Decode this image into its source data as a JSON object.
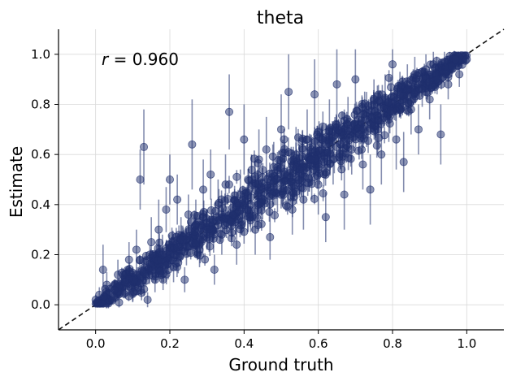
{
  "chart_data": {
    "type": "scatter",
    "title": "theta",
    "xlabel": "Ground truth",
    "ylabel": "Estimate",
    "xlim": [
      -0.1,
      1.1
    ],
    "ylim": [
      -0.1,
      1.1
    ],
    "xticks": [
      "0.0",
      "0.2",
      "0.4",
      "0.6",
      "0.8",
      "1.0"
    ],
    "yticks": [
      "0.0",
      "0.2",
      "0.4",
      "0.6",
      "0.8",
      "1.0"
    ],
    "grid": true,
    "identity_line": true,
    "annotation": {
      "r_symbol": "r",
      "text": " = 0.960"
    },
    "marker_color": "#1f2f6e",
    "point_count_estimate": 1000,
    "points": [
      {
        "x": 0.0,
        "y": 0.02,
        "e": 0.02
      },
      {
        "x": 0.01,
        "y": 0.04,
        "e": 0.03
      },
      {
        "x": 0.02,
        "y": 0.14,
        "e": 0.1
      },
      {
        "x": 0.03,
        "y": 0.08,
        "e": 0.05
      },
      {
        "x": 0.05,
        "y": 0.06,
        "e": 0.04
      },
      {
        "x": 0.06,
        "y": 0.12,
        "e": 0.06
      },
      {
        "x": 0.08,
        "y": 0.09,
        "e": 0.05
      },
      {
        "x": 0.09,
        "y": 0.18,
        "e": 0.07
      },
      {
        "x": 0.1,
        "y": 0.05,
        "e": 0.04
      },
      {
        "x": 0.11,
        "y": 0.22,
        "e": 0.08
      },
      {
        "x": 0.12,
        "y": 0.5,
        "e": 0.12
      },
      {
        "x": 0.13,
        "y": 0.63,
        "e": 0.15
      },
      {
        "x": 0.13,
        "y": 0.13,
        "e": 0.06
      },
      {
        "x": 0.14,
        "y": 0.02,
        "e": 0.03
      },
      {
        "x": 0.15,
        "y": 0.25,
        "e": 0.1
      },
      {
        "x": 0.16,
        "y": 0.1,
        "e": 0.05
      },
      {
        "x": 0.17,
        "y": 0.3,
        "e": 0.12
      },
      {
        "x": 0.18,
        "y": 0.2,
        "e": 0.08
      },
      {
        "x": 0.19,
        "y": 0.38,
        "e": 0.09
      },
      {
        "x": 0.2,
        "y": 0.5,
        "e": 0.1
      },
      {
        "x": 0.21,
        "y": 0.15,
        "e": 0.06
      },
      {
        "x": 0.22,
        "y": 0.42,
        "e": 0.1
      },
      {
        "x": 0.23,
        "y": 0.26,
        "e": 0.09
      },
      {
        "x": 0.24,
        "y": 0.1,
        "e": 0.05
      },
      {
        "x": 0.25,
        "y": 0.36,
        "e": 0.08
      },
      {
        "x": 0.26,
        "y": 0.64,
        "e": 0.18
      },
      {
        "x": 0.27,
        "y": 0.32,
        "e": 0.1
      },
      {
        "x": 0.28,
        "y": 0.22,
        "e": 0.07
      },
      {
        "x": 0.29,
        "y": 0.46,
        "e": 0.12
      },
      {
        "x": 0.3,
        "y": 0.3,
        "e": 0.08
      },
      {
        "x": 0.31,
        "y": 0.52,
        "e": 0.1
      },
      {
        "x": 0.32,
        "y": 0.14,
        "e": 0.06
      },
      {
        "x": 0.33,
        "y": 0.4,
        "e": 0.1
      },
      {
        "x": 0.34,
        "y": 0.28,
        "e": 0.08
      },
      {
        "x": 0.35,
        "y": 0.48,
        "e": 0.12
      },
      {
        "x": 0.36,
        "y": 0.77,
        "e": 0.15
      },
      {
        "x": 0.37,
        "y": 0.36,
        "e": 0.09
      },
      {
        "x": 0.38,
        "y": 0.24,
        "e": 0.08
      },
      {
        "x": 0.39,
        "y": 0.44,
        "e": 0.1
      },
      {
        "x": 0.4,
        "y": 0.66,
        "e": 0.14
      },
      {
        "x": 0.41,
        "y": 0.38,
        "e": 0.09
      },
      {
        "x": 0.42,
        "y": 0.5,
        "e": 0.1
      },
      {
        "x": 0.43,
        "y": 0.3,
        "e": 0.1
      },
      {
        "x": 0.44,
        "y": 0.58,
        "e": 0.12
      },
      {
        "x": 0.45,
        "y": 0.42,
        "e": 0.08
      },
      {
        "x": 0.46,
        "y": 0.62,
        "e": 0.13
      },
      {
        "x": 0.47,
        "y": 0.27,
        "e": 0.09
      },
      {
        "x": 0.48,
        "y": 0.55,
        "e": 0.1
      },
      {
        "x": 0.49,
        "y": 0.46,
        "e": 0.09
      },
      {
        "x": 0.5,
        "y": 0.7,
        "e": 0.14
      },
      {
        "x": 0.51,
        "y": 0.52,
        "e": 0.1
      },
      {
        "x": 0.52,
        "y": 0.85,
        "e": 0.15
      },
      {
        "x": 0.53,
        "y": 0.38,
        "e": 0.1
      },
      {
        "x": 0.54,
        "y": 0.6,
        "e": 0.11
      },
      {
        "x": 0.55,
        "y": 0.54,
        "e": 0.1
      },
      {
        "x": 0.56,
        "y": 0.42,
        "e": 0.12
      },
      {
        "x": 0.57,
        "y": 0.66,
        "e": 0.12
      },
      {
        "x": 0.58,
        "y": 0.58,
        "e": 0.1
      },
      {
        "x": 0.59,
        "y": 0.84,
        "e": 0.14
      },
      {
        "x": 0.6,
        "y": 0.48,
        "e": 0.12
      },
      {
        "x": 0.61,
        "y": 0.62,
        "e": 0.1
      },
      {
        "x": 0.62,
        "y": 0.35,
        "e": 0.1
      },
      {
        "x": 0.63,
        "y": 0.7,
        "e": 0.12
      },
      {
        "x": 0.64,
        "y": 0.58,
        "e": 0.1
      },
      {
        "x": 0.65,
        "y": 0.88,
        "e": 0.15
      },
      {
        "x": 0.66,
        "y": 0.64,
        "e": 0.1
      },
      {
        "x": 0.67,
        "y": 0.44,
        "e": 0.14
      },
      {
        "x": 0.68,
        "y": 0.72,
        "e": 0.11
      },
      {
        "x": 0.69,
        "y": 0.62,
        "e": 0.1
      },
      {
        "x": 0.7,
        "y": 0.9,
        "e": 0.13
      },
      {
        "x": 0.71,
        "y": 0.68,
        "e": 0.1
      },
      {
        "x": 0.72,
        "y": 0.56,
        "e": 0.1
      },
      {
        "x": 0.73,
        "y": 0.74,
        "e": 0.11
      },
      {
        "x": 0.74,
        "y": 0.46,
        "e": 0.14
      },
      {
        "x": 0.75,
        "y": 0.8,
        "e": 0.1
      },
      {
        "x": 0.76,
        "y": 0.7,
        "e": 0.1
      },
      {
        "x": 0.77,
        "y": 0.6,
        "e": 0.12
      },
      {
        "x": 0.78,
        "y": 0.82,
        "e": 0.1
      },
      {
        "x": 0.79,
        "y": 0.74,
        "e": 0.09
      },
      {
        "x": 0.8,
        "y": 0.96,
        "e": 0.08
      },
      {
        "x": 0.81,
        "y": 0.66,
        "e": 0.12
      },
      {
        "x": 0.82,
        "y": 0.84,
        "e": 0.09
      },
      {
        "x": 0.83,
        "y": 0.57,
        "e": 0.12
      },
      {
        "x": 0.84,
        "y": 0.88,
        "e": 0.08
      },
      {
        "x": 0.85,
        "y": 0.78,
        "e": 0.1
      },
      {
        "x": 0.86,
        "y": 0.92,
        "e": 0.07
      },
      {
        "x": 0.87,
        "y": 0.7,
        "e": 0.1
      },
      {
        "x": 0.88,
        "y": 0.86,
        "e": 0.07
      },
      {
        "x": 0.89,
        "y": 0.94,
        "e": 0.06
      },
      {
        "x": 0.9,
        "y": 0.82,
        "e": 0.08
      },
      {
        "x": 0.91,
        "y": 0.96,
        "e": 0.05
      },
      {
        "x": 0.92,
        "y": 0.9,
        "e": 0.06
      },
      {
        "x": 0.93,
        "y": 0.68,
        "e": 0.12
      },
      {
        "x": 0.94,
        "y": 0.97,
        "e": 0.04
      },
      {
        "x": 0.95,
        "y": 0.88,
        "e": 0.06
      },
      {
        "x": 0.96,
        "y": 0.95,
        "e": 0.04
      },
      {
        "x": 0.97,
        "y": 0.98,
        "e": 0.03
      },
      {
        "x": 0.98,
        "y": 0.92,
        "e": 0.05
      },
      {
        "x": 0.99,
        "y": 0.99,
        "e": 0.02
      },
      {
        "x": 1.0,
        "y": 0.98,
        "e": 0.02
      }
    ]
  }
}
